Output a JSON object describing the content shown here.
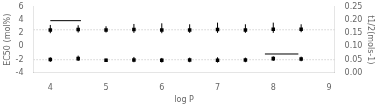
{
  "chart_data": {
    "type": "scatter",
    "xlabel": "log P",
    "ylabel": "EC50 (mol%)",
    "y2label": "t1/2(mols-1)",
    "xlim": [
      3.7,
      9.1
    ],
    "xticks": [
      4,
      5,
      6,
      7,
      8,
      9
    ],
    "ylim": [
      -4,
      6
    ],
    "yticks": [
      -4,
      -2,
      0,
      2,
      4,
      6
    ],
    "y2lim": [
      0.0,
      0.25
    ],
    "y2ticks": [
      {
        "value": 0.0,
        "label": "0.00"
      },
      {
        "value": 0.05,
        "label": "0.05"
      },
      {
        "value": 0.1,
        "label": "0.10"
      },
      {
        "value": 0.15,
        "label": "0.15"
      },
      {
        "value": 0.2,
        "label": "0.20"
      },
      {
        "value": 0.25,
        "label": "0.25"
      }
    ],
    "grid": false,
    "hlines": [
      {
        "y": 2.52,
        "color": "#bbbbbb",
        "line_style": "dotted"
      },
      {
        "y": -2.02,
        "color": "#bbbbbb",
        "line_style": "dotted"
      }
    ],
    "series": [
      {
        "type": "scatter",
        "color": "black",
        "marker": "square",
        "x": [
          4,
          4.5,
          5,
          5.5,
          6,
          6.5,
          7,
          7.5,
          8,
          8.5
        ],
        "values": [
          2.5,
          2.55,
          2.5,
          2.55,
          2.5,
          2.5,
          2.55,
          2.5,
          2.6,
          2.6
        ],
        "yerr_neg": [
          0.5,
          0.45,
          0.4,
          0.5,
          0.5,
          0.45,
          0.5,
          0.45,
          0.55,
          0.45
        ],
        "yerr_pos": [
          0.75,
          0.65,
          0.55,
          0.85,
          1.0,
          0.85,
          1.05,
          0.85,
          1.0,
          0.75
        ]
      },
      {
        "type": "scatter",
        "color": "black",
        "marker": "square",
        "x": [
          4,
          4.5,
          5,
          5.5,
          6,
          6.5,
          7,
          7.5,
          8,
          8.5
        ],
        "values": [
          -2.0,
          -1.85,
          -2.1,
          -2.05,
          -2.1,
          -2.05,
          -2.1,
          -2.05,
          -1.85,
          -1.9
        ],
        "yerr_neg": [
          0.35,
          0.35,
          0.25,
          0.35,
          0.35,
          0.35,
          0.35,
          0.35,
          0.35,
          0.35
        ],
        "yerr_pos": [
          0.35,
          0.45,
          0.25,
          0.45,
          0.35,
          0.35,
          0.45,
          0.35,
          0.35,
          0.35
        ]
      },
      {
        "type": "line",
        "color": "black",
        "line_style": "solid",
        "marker": "none",
        "x": [
          4.0,
          4.55
        ],
        "values": [
          3.9,
          3.9
        ]
      },
      {
        "type": "line",
        "color": "black",
        "line_style": "solid",
        "marker": "none",
        "x": [
          7.85,
          8.45
        ],
        "values": [
          -1.15,
          -1.15
        ]
      }
    ]
  }
}
